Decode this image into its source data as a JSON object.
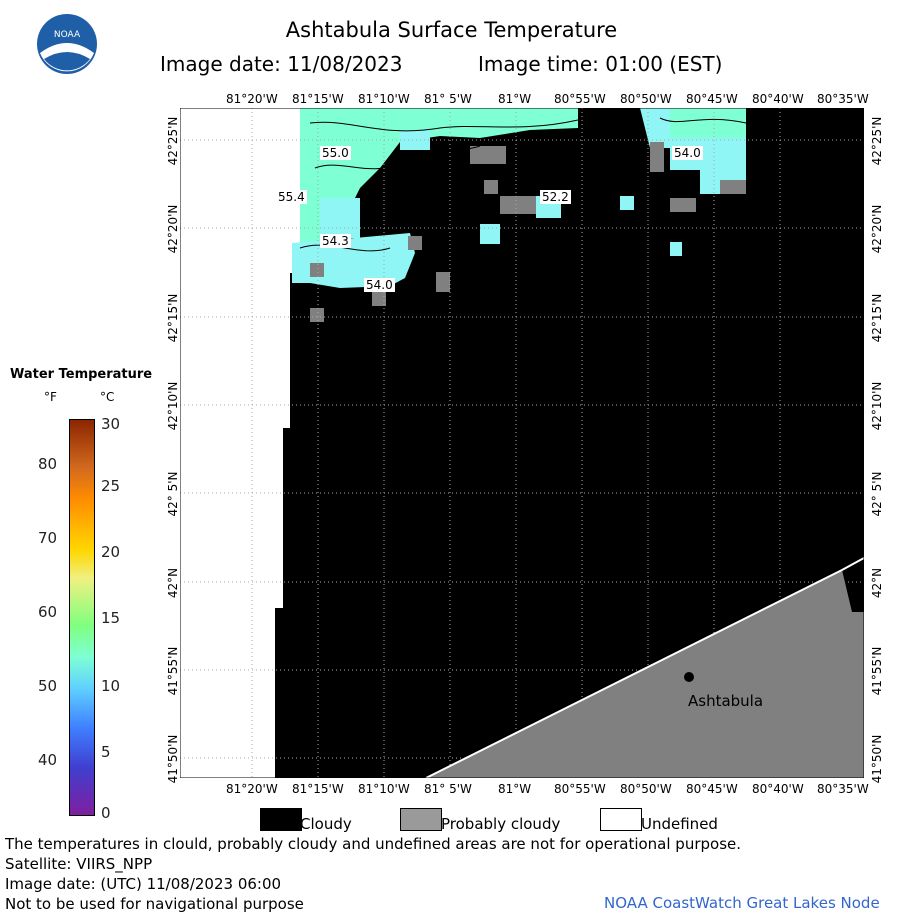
{
  "header": {
    "title": "Ashtabula Surface Temperature",
    "image_date": "Image date: 11/08/2023",
    "image_time": "Image time: 01:00 (EST)"
  },
  "logo": {
    "text": "NOAA"
  },
  "map": {
    "lon_labels": [
      "81°20'W",
      "81°15'W",
      "81°10'W",
      "81° 5'W",
      "81°W",
      "80°55'W",
      "80°50'W",
      "80°45'W",
      "80°40'W",
      "80°35'W"
    ],
    "lat_labels": [
      "42°25'N",
      "42°20'N",
      "42°15'N",
      "42°10'N",
      "42° 5'N",
      "42°N",
      "41°55'N",
      "41°50'N"
    ],
    "contour_labels": [
      "55.0",
      "55.4",
      "54.3",
      "54.0",
      "52.2",
      "54.0"
    ],
    "city": "Ashtabula",
    "colors": {
      "cloudy": "#000000",
      "probably_cloudy": "#808080",
      "undefined": "#ffffff",
      "warm_water": "#7fffd4",
      "cool_water": "#8ff5f5"
    }
  },
  "legend": {
    "title": "Water Temperature",
    "unit_f": "°F",
    "unit_c": "°C",
    "f_ticks": [
      "80",
      "70",
      "60",
      "50",
      "40"
    ],
    "c_ticks": [
      "30",
      "25",
      "20",
      "15",
      "10",
      "5",
      "0"
    ],
    "range_c": [
      0,
      30
    ]
  },
  "key": {
    "cloudy": "Cloudy",
    "probably_cloudy": "Probably cloudy",
    "undefined": "Undefined"
  },
  "footer": {
    "line1": "The temperatures in clould, probably cloudy and undefined areas are not for operational purpose.",
    "line2": "Satellite: VIIRS_NPP",
    "line3": "Image date: (UTC) 11/08/2023  06:00",
    "line4": "Not to be used for navigational purpose",
    "credit": "NOAA CoastWatch Great Lakes Node"
  }
}
